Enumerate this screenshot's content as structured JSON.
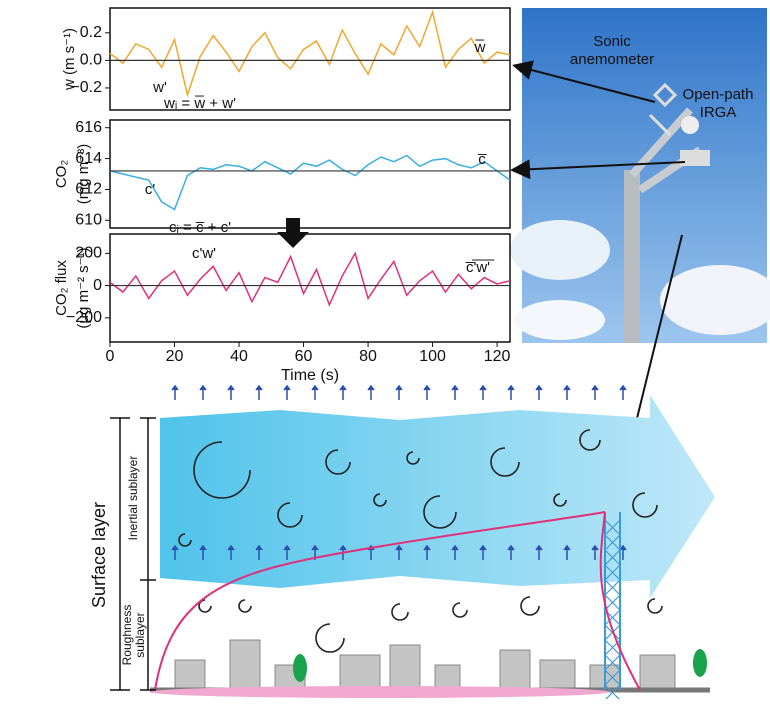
{
  "chart_data": [
    {
      "type": "line",
      "ylabel": [
        "w (m s⁻¹)"
      ],
      "x": [
        0,
        4,
        8,
        12,
        16,
        20,
        24,
        28,
        32,
        36,
        40,
        44,
        48,
        52,
        56,
        60,
        64,
        68,
        72,
        76,
        80,
        84,
        88,
        92,
        96,
        100,
        104,
        108,
        112,
        116,
        120,
        124
      ],
      "series": [
        {
          "color": "#f0a830",
          "values": [
            0.05,
            -0.02,
            0.12,
            0.08,
            -0.05,
            0.15,
            -0.25,
            0.03,
            0.18,
            0.06,
            -0.08,
            0.1,
            0.2,
            0.02,
            -0.06,
            0.08,
            0.14,
            -0.03,
            0.22,
            0.05,
            -0.1,
            0.12,
            0.04,
            0.25,
            0.1,
            0.35,
            -0.05,
            0.08,
            0.16,
            -0.02,
            0.06,
            0.04
          ]
        }
      ],
      "mean": 0,
      "xlim": [
        0,
        124
      ],
      "ylim": [
        -0.36,
        0.38
      ],
      "yticks": [
        {
          "value": -0.2,
          "label": "−0.2"
        },
        {
          "value": 0,
          "label": "0.0"
        },
        0.2
      ],
      "annotations": [
        "w̅",
        "w'",
        "wᵢ = w̅ + w'"
      ]
    },
    {
      "type": "line",
      "ylabel": [
        "CO₂",
        "(mg m⁻³)"
      ],
      "x": [
        0,
        4,
        8,
        12,
        16,
        20,
        24,
        28,
        32,
        36,
        40,
        44,
        48,
        52,
        56,
        60,
        64,
        68,
        72,
        76,
        80,
        84,
        88,
        92,
        96,
        100,
        104,
        108,
        112,
        116,
        120,
        124
      ],
      "series": [
        {
          "color": "#3ab0e0",
          "values": [
            613.2,
            613.0,
            612.8,
            612.6,
            611.2,
            610.7,
            612.9,
            613.4,
            613.3,
            613.6,
            613.5,
            613.2,
            613.8,
            613.4,
            613.0,
            613.7,
            613.5,
            613.9,
            613.3,
            612.9,
            613.6,
            614.1,
            613.8,
            614.2,
            613.5,
            613.9,
            614.0,
            613.6,
            613.4,
            613.8,
            613.2,
            612.6
          ]
        }
      ],
      "mean": 613.2,
      "xlim": [
        0,
        124
      ],
      "ylim": [
        609.5,
        616.5
      ],
      "yticks": [
        610,
        612,
        614,
        616
      ],
      "annotations": [
        "c̅",
        "c'",
        "cᵢ = c̅ + c'"
      ]
    },
    {
      "type": "line",
      "ylabel": [
        "CO₂ flux",
        "(μg m⁻² s⁻¹)"
      ],
      "x": [
        0,
        4,
        8,
        12,
        16,
        20,
        24,
        28,
        32,
        36,
        40,
        44,
        48,
        52,
        56,
        60,
        64,
        68,
        72,
        76,
        80,
        84,
        88,
        92,
        96,
        100,
        104,
        108,
        112,
        116,
        120,
        124
      ],
      "series": [
        {
          "color": "#e0307a",
          "values": [
            20,
            -40,
            60,
            -80,
            30,
            90,
            -60,
            40,
            120,
            -30,
            80,
            -100,
            50,
            20,
            180,
            -50,
            100,
            -120,
            60,
            200,
            -80,
            40,
            150,
            -60,
            30,
            90,
            -40,
            70,
            -20,
            50,
            10,
            30
          ]
        }
      ],
      "mean": 0,
      "xlim": [
        0,
        124
      ],
      "ylim": [
        -350,
        320
      ],
      "yticks": [
        {
          "value": -200,
          "label": "−200"
        },
        0,
        200
      ],
      "xticks": [
        0,
        20,
        40,
        60,
        80,
        100,
        120
      ],
      "xlabel": "Time (s)",
      "annotations": [
        "c̅'̅w̅'̅",
        "c'w'"
      ]
    }
  ],
  "photo": {
    "sonic": [
      "Sonic",
      "anemometer"
    ],
    "irga": [
      "Open-path",
      "IRGA"
    ]
  },
  "diagram": {
    "surface_layer": "Surface layer",
    "inertial": "Inertial sublayer",
    "roughness": [
      "Roughness",
      "sublayer"
    ]
  }
}
